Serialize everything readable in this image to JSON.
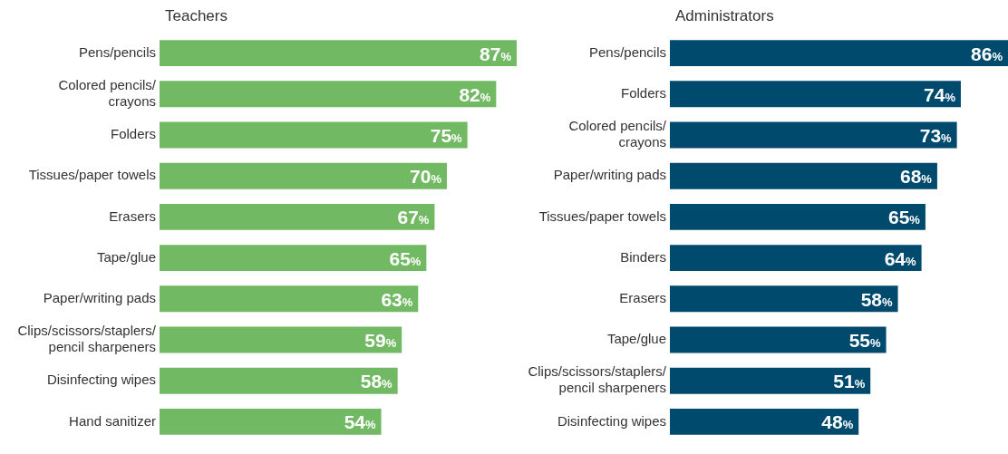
{
  "chart_data": [
    {
      "type": "bar",
      "orientation": "horizontal",
      "title": "Teachers",
      "categories": [
        "Pens/pencils",
        "Colored pencils/\ncrayons",
        "Folders",
        "Tissues/paper towels",
        "Erasers",
        "Tape/glue",
        "Paper/writing pads",
        "Clips/scissors/staplers/\npencil sharpeners",
        "Disinfecting wipes",
        "Hand sanitizer"
      ],
      "values": [
        87,
        82,
        75,
        70,
        67,
        65,
        63,
        59,
        58,
        54
      ],
      "color": "#72b963",
      "value_labels": [
        "87%",
        "82%",
        "75%",
        "70%",
        "67%",
        "65%",
        "63%",
        "59%",
        "58%",
        "54%"
      ],
      "grid": false,
      "legend": false,
      "tick_labels": "y"
    },
    {
      "type": "bar",
      "orientation": "horizontal",
      "title": "Administrators",
      "categories": [
        "Pens/pencils",
        "Folders",
        "Colored pencils/\ncrayons",
        "Paper/writing pads",
        "Tissues/paper towels",
        "Binders",
        "Erasers",
        "Tape/glue",
        "Clips/scissors/staplers/\npencil sharpeners",
        "Disinfecting wipes"
      ],
      "values": [
        86,
        74,
        73,
        68,
        65,
        64,
        58,
        55,
        51,
        48
      ],
      "color": "#004a6e",
      "value_labels": [
        "86%",
        "74%",
        "73%",
        "68%",
        "65%",
        "64%",
        "58%",
        "55%",
        "51%",
        "48%"
      ],
      "grid": false,
      "legend": false,
      "tick_labels": "y"
    }
  ]
}
